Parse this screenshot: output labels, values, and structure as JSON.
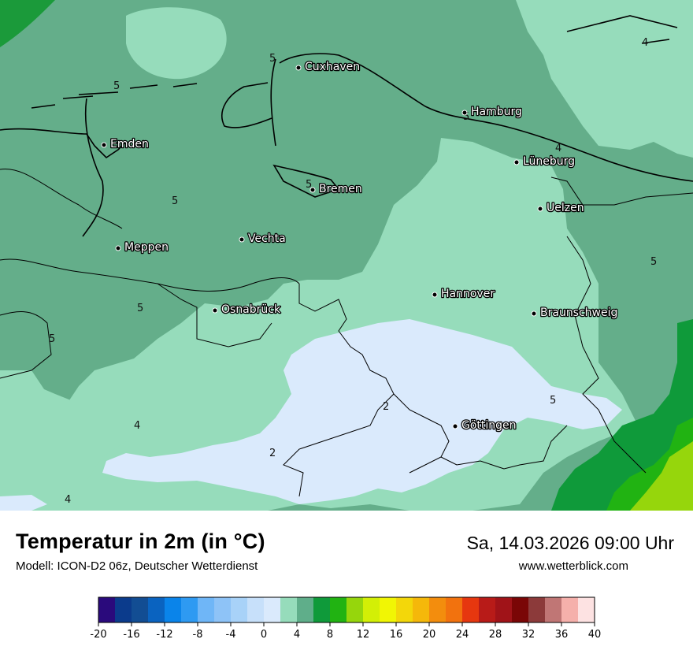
{
  "title": "Temperatur in 2m (in °C)",
  "model": "Modell: ICON-D2 06z, Deutscher Wetterdienst",
  "datetime": "Sa, 14.03.2026 09:00 Uhr",
  "website": "www.wetterblick.com",
  "cities": [
    {
      "name": "Cuxhaven"
    },
    {
      "name": "Hamburg"
    },
    {
      "name": "Emden"
    },
    {
      "name": "Bremen"
    },
    {
      "name": "Lüneburg"
    },
    {
      "name": "Uelzen"
    },
    {
      "name": "Vechta"
    },
    {
      "name": "Meppen"
    },
    {
      "name": "Hannover"
    },
    {
      "name": "Osnabrück"
    },
    {
      "name": "Braunschweig"
    },
    {
      "name": "Göttingen"
    }
  ],
  "isoline_labels": [
    "5",
    "5",
    "4",
    "5",
    "4",
    "5",
    "5",
    "5",
    "5",
    "5",
    "2",
    "5",
    "4",
    "2",
    "4"
  ],
  "legend": {
    "tick_labels": [
      "-20",
      "-16",
      "-12",
      "-8",
      "-4",
      "0",
      "4",
      "8",
      "12",
      "16",
      "20",
      "24",
      "28",
      "32",
      "36",
      "40"
    ],
    "colors": [
      "#2a0a7c",
      "#0b3b8c",
      "#124d93",
      "#0a63c0",
      "#0a84ea",
      "#2e9af2",
      "#6fb6f7",
      "#8ec3f7",
      "#a8d2f8",
      "#c7e0fa",
      "#daeafc",
      "#96dcbb",
      "#5fae8a",
      "#0f9a3a",
      "#21b312",
      "#96d60c",
      "#d3ef06",
      "#f1f604",
      "#f3d70a",
      "#f5b80a",
      "#f38d0d",
      "#f2720e",
      "#e6370f",
      "#b81b18",
      "#a01318",
      "#7a0606",
      "#8c3a3a",
      "#c07675",
      "#f5b0ab",
      "#fde2e2"
    ]
  }
}
